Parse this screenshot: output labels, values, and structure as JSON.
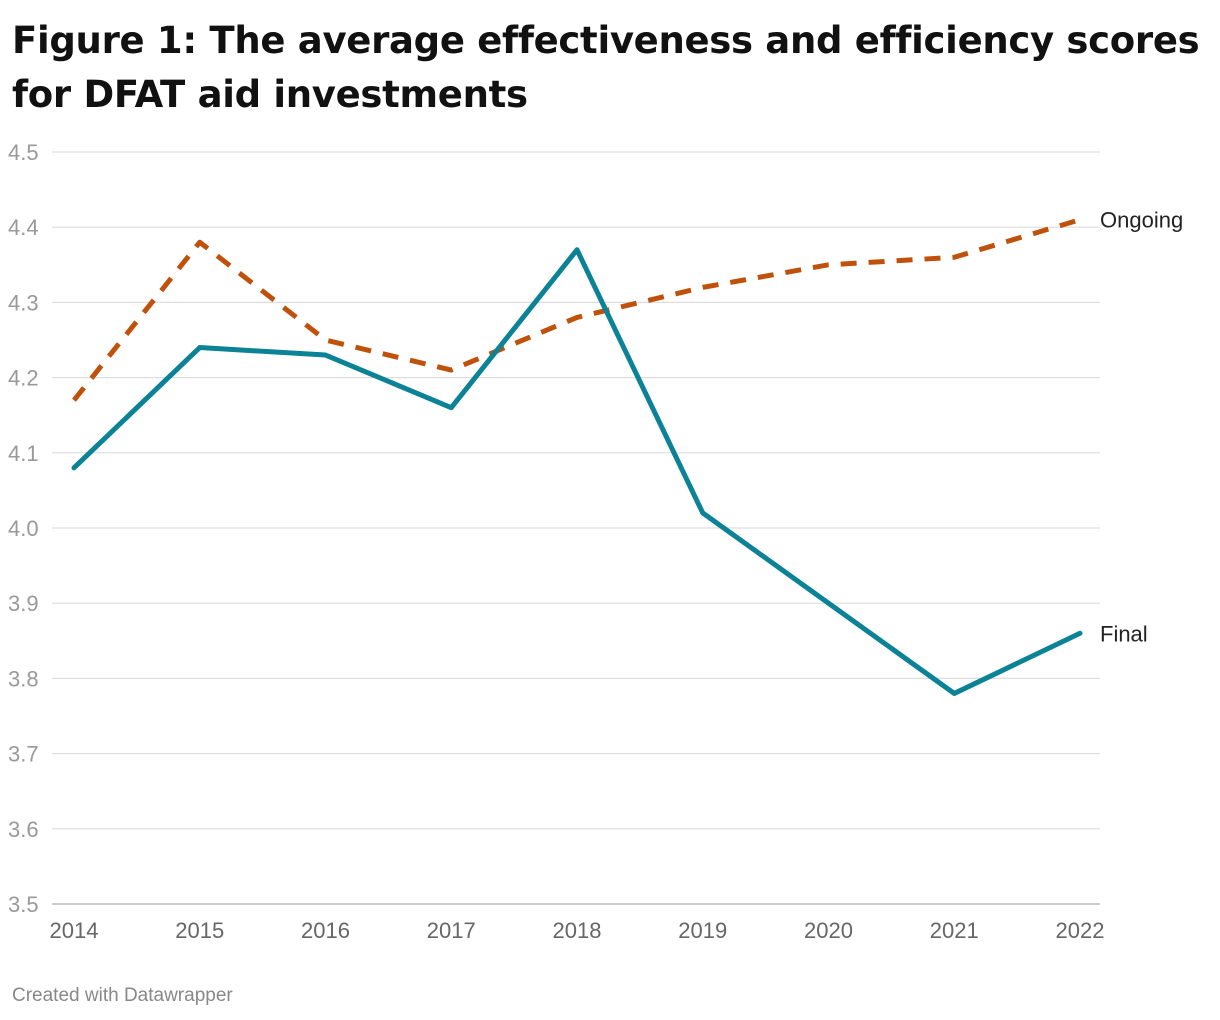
{
  "title": "Figure 1: The average effectiveness and efficiency scores for DFAT aid investments",
  "credit": "Created with Datawrapper",
  "colors": {
    "final": "#0b8296",
    "ongoing": "#c0510b",
    "grid": "#dddddd",
    "axis": "#bbbbbb"
  },
  "chart_data": {
    "type": "line",
    "title": "Figure 1: The average effectiveness and efficiency scores for DFAT aid investments",
    "xlabel": "",
    "ylabel": "",
    "x": [
      2014,
      2015,
      2016,
      2017,
      2018,
      2019,
      2020,
      2021,
      2022
    ],
    "x_tick_labels": [
      "2014",
      "2015",
      "2016",
      "2017",
      "2018",
      "2019",
      "2020",
      "2021",
      "2022"
    ],
    "y_tick_labels": [
      "4.5",
      "4.4",
      "4.3",
      "4.2",
      "4.1",
      "4.0",
      "3.9",
      "3.8",
      "3.7",
      "3.6",
      "3.5"
    ],
    "y_ticks": [
      4.5,
      4.4,
      4.3,
      4.2,
      4.1,
      4.0,
      3.9,
      3.8,
      3.7,
      3.6,
      3.5
    ],
    "ylim": [
      3.5,
      4.5
    ],
    "grid": true,
    "legend": "direct labels at line ends (right)",
    "series": [
      {
        "name": "Ongoing",
        "style": "dashed",
        "values": [
          4.17,
          4.38,
          4.25,
          4.21,
          4.28,
          4.32,
          4.35,
          4.36,
          4.41
        ]
      },
      {
        "name": "Final",
        "style": "solid",
        "values": [
          4.08,
          4.24,
          4.23,
          4.16,
          4.37,
          4.02,
          3.9,
          3.78,
          3.86
        ]
      }
    ]
  }
}
